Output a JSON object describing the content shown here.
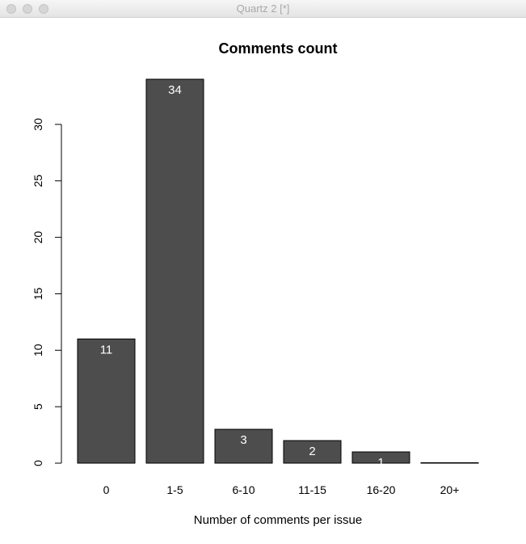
{
  "window": {
    "title": "Quartz 2 [*]"
  },
  "chart_data": {
    "type": "bar",
    "title": "Comments count",
    "xlabel": "Number of comments per issue",
    "ylabel": "",
    "categories": [
      "0",
      "1-5",
      "6-10",
      "11-15",
      "16-20",
      "20+"
    ],
    "values": [
      11,
      34,
      3,
      2,
      1,
      0
    ],
    "data_labels": [
      "11",
      "34",
      "3",
      "2",
      "1",
      ""
    ],
    "ylim": [
      0,
      34
    ],
    "yticks": [
      0,
      5,
      10,
      15,
      20,
      25,
      30
    ],
    "grid": false,
    "legend": "none",
    "colors": {
      "bar_fill": "#4d4d4d",
      "bar_stroke": "#000000",
      "data_label": "#ffffff",
      "axis": "#000000"
    }
  }
}
